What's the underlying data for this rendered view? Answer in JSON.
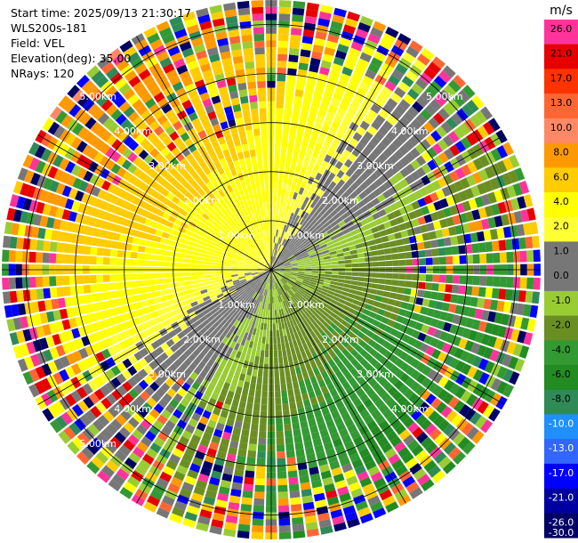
{
  "header": {
    "start_time": "Start time: 2025/09/13 21:30:17",
    "instrument": "WLS200s-181",
    "field": "Field: VEL",
    "elevation": "Elevation(deg): 35.00",
    "nrays": "NRays: 120"
  },
  "chart_data": {
    "type": "ppi_polar",
    "field": "VEL",
    "units": "m/s",
    "n_rays": 120,
    "elevation_deg": 35.0,
    "range_rings": [
      "1.00km",
      "2.00km",
      "3.00km",
      "4.00km",
      "5.00km"
    ],
    "range_ring_values_km": [
      1,
      2,
      3,
      4,
      5
    ],
    "max_range_km": 5.5,
    "colorbar": {
      "label": "m/s",
      "ticks": [
        "26.0",
        "21.0",
        "17.0",
        "13.0",
        "10.0",
        "8.0",
        "6.0",
        "4.0",
        "2.0",
        "1.0",
        "0.0",
        "-1.0",
        "-2.0",
        "-4.0",
        "-6.0",
        "-8.0",
        "-10.0",
        "-13.0",
        "-17.0",
        "-21.0",
        "-26.0",
        "-30.0"
      ],
      "colors": [
        "#ff3399",
        "#e60000",
        "#ff3300",
        "#ff6633",
        "#ff8866",
        "#ff9900",
        "#ffcc00",
        "#ffff00",
        "#ffff33",
        "#777777",
        "#777777",
        "#99cc33",
        "#6b8e23",
        "#339933",
        "#228b22",
        "#2e8b57",
        "#1e90ff",
        "#3366ff",
        "#0000ff",
        "#0000a0",
        "#000066"
      ]
    },
    "velocity_pattern": "toward radar (negative, greens) to the south-east, away (positive, yellows/oranges) to the north-west; noisy outer gates"
  }
}
